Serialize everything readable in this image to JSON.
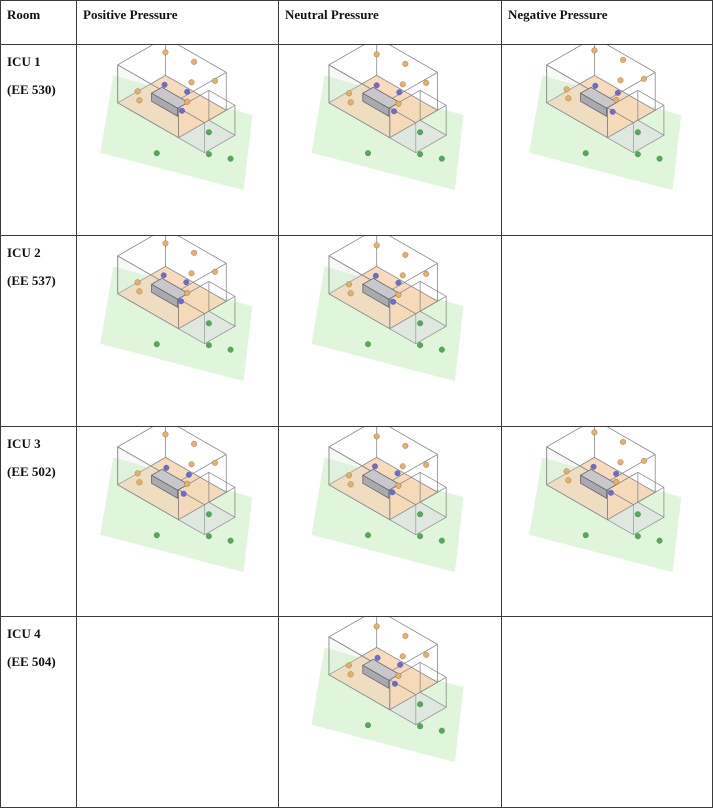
{
  "table": {
    "headers": {
      "room": "Room",
      "positive": "Positive Pressure",
      "neutral": "Neutral Pressure",
      "negative": "Negative Pressure"
    },
    "rows": [
      {
        "name": "ICU 1",
        "code": "(EE 530)",
        "positive": true,
        "neutral": true,
        "negative": true
      },
      {
        "name": "ICU 2",
        "code": "(EE 537)",
        "positive": true,
        "neutral": true,
        "negative": false
      },
      {
        "name": "ICU 3",
        "code": "(EE 502)",
        "positive": true,
        "neutral": true,
        "negative": true
      },
      {
        "name": "ICU 4",
        "code": "(EE 504)",
        "positive": false,
        "neutral": true,
        "negative": false
      }
    ]
  },
  "colors": {
    "ground": "#d9f5d4",
    "floor": "#f6d7b5",
    "wireframe": "#8a8a8a",
    "sensor_orange": "#e8b060",
    "sensor_blue": "#6a6ad8",
    "sensor_green": "#4caf50",
    "bed": "#c8c8cc"
  }
}
